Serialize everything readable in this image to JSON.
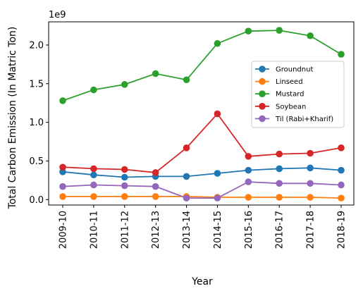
{
  "chart_data": {
    "type": "line",
    "categories": [
      "2009-10",
      "2010-11",
      "2011-12",
      "2012-13",
      "2013-14",
      "2014-15",
      "2015-16",
      "2016-17",
      "2017-18",
      "2018-19"
    ],
    "offset_text": "1e9",
    "ylabel": "Total Carbon Emission (In Matric Ton)",
    "xlabel": "Year",
    "ylim": [
      -0.07,
      2.3
    ],
    "yticks": [
      0.0,
      0.5,
      1.0,
      1.5,
      2.0
    ],
    "ytick_labels": [
      "0.0",
      "0.5",
      "1.0",
      "1.5",
      "2.0"
    ],
    "grid": false,
    "legend_position": "center-right",
    "series": [
      {
        "name": "Groundnut",
        "color": "#1f77b4",
        "values": [
          0.36,
          0.32,
          0.29,
          0.3,
          0.3,
          0.34,
          0.38,
          0.4,
          0.41,
          0.38
        ]
      },
      {
        "name": "Linseed",
        "color": "#ff7f0e",
        "values": [
          0.04,
          0.04,
          0.04,
          0.04,
          0.04,
          0.03,
          0.03,
          0.03,
          0.03,
          0.02
        ]
      },
      {
        "name": "Mustard",
        "color": "#2ca02c",
        "values": [
          1.28,
          1.42,
          1.49,
          1.63,
          1.55,
          2.02,
          2.18,
          2.19,
          2.12,
          1.88
        ]
      },
      {
        "name": "Soybean",
        "color": "#d62728",
        "values": [
          0.42,
          0.4,
          0.39,
          0.35,
          0.67,
          1.11,
          0.56,
          0.59,
          0.6,
          0.67
        ]
      },
      {
        "name": "Til (Rabi+Kharif)",
        "color": "#9467bd",
        "values": [
          0.17,
          0.19,
          0.18,
          0.17,
          0.02,
          0.02,
          0.23,
          0.21,
          0.21,
          0.19
        ]
      }
    ]
  }
}
